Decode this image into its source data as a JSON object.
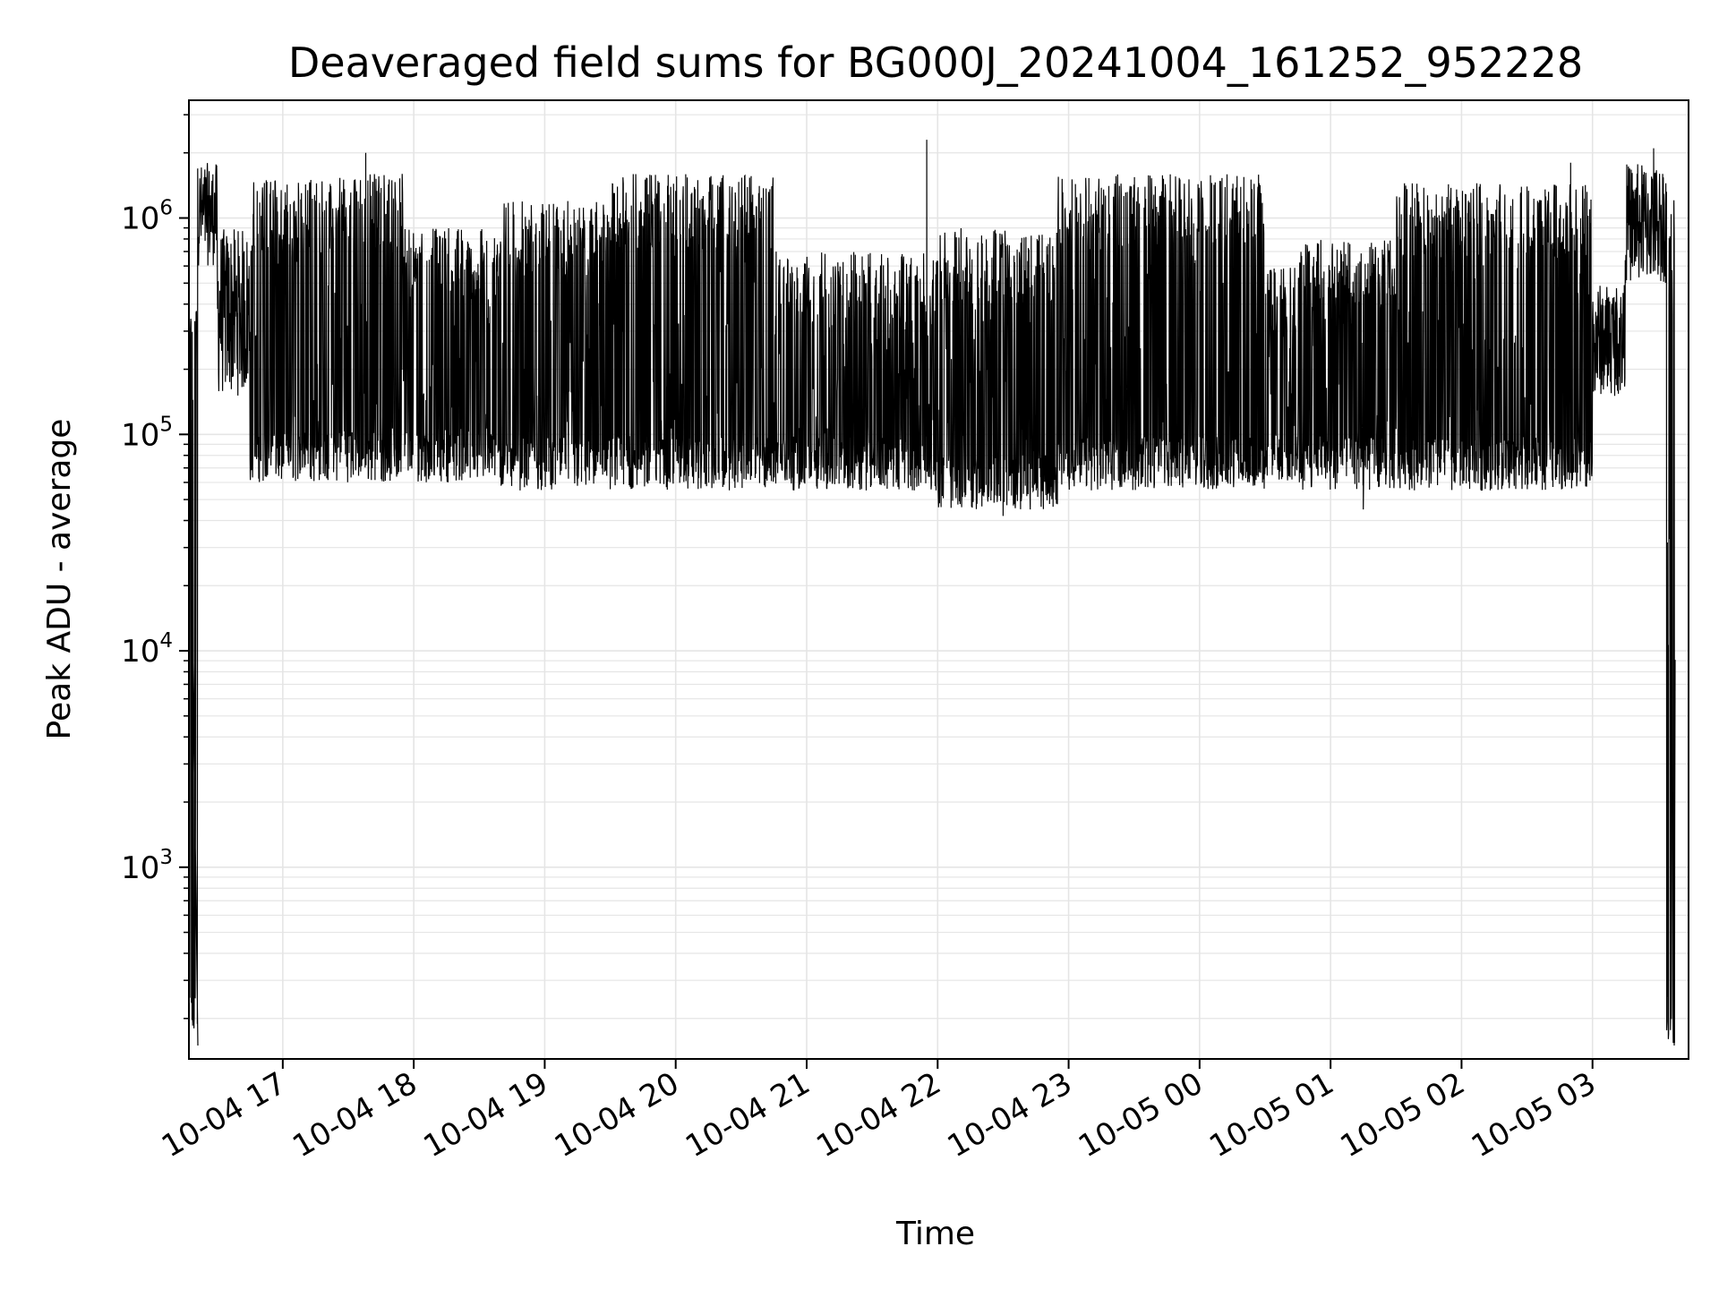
{
  "chart_data": {
    "type": "line",
    "title": "Deaveraged field sums for BG000J_20241004_161252_952228",
    "xlabel": "Time",
    "ylabel": "Peak ADU - average",
    "yscale": "log",
    "ylim": [
      130,
      3500000
    ],
    "xlim": [
      "2024-10-04 16:17",
      "2024-10-05 03:44"
    ],
    "grid": true,
    "line_color": "#000000",
    "grid_color": "#e5e5e5",
    "x_ticks": [
      {
        "value": "2024-10-04 17:00",
        "label": "10-04 17"
      },
      {
        "value": "2024-10-04 18:00",
        "label": "10-04 18"
      },
      {
        "value": "2024-10-04 19:00",
        "label": "10-04 19"
      },
      {
        "value": "2024-10-04 20:00",
        "label": "10-04 20"
      },
      {
        "value": "2024-10-04 21:00",
        "label": "10-04 21"
      },
      {
        "value": "2024-10-04 22:00",
        "label": "10-04 22"
      },
      {
        "value": "2024-10-04 23:00",
        "label": "10-04 23"
      },
      {
        "value": "2024-10-05 00:00",
        "label": "10-05 00"
      },
      {
        "value": "2024-10-05 01:00",
        "label": "10-05 01"
      },
      {
        "value": "2024-10-05 02:00",
        "label": "10-05 02"
      },
      {
        "value": "2024-10-05 03:00",
        "label": "10-05 03"
      }
    ],
    "y_ticks": [
      {
        "value": 1000,
        "base": "10",
        "exp": "3"
      },
      {
        "value": 10000,
        "base": "10",
        "exp": "4"
      },
      {
        "value": 100000,
        "base": "10",
        "exp": "5"
      },
      {
        "value": 1000000,
        "base": "10",
        "exp": "6"
      }
    ],
    "series": [
      {
        "segments": [
          {
            "start": "2024-10-04 16:17",
            "end": "2024-10-04 16:21",
            "lo": 150,
            "hi": 400000
          },
          {
            "start": "2024-10-04 16:21",
            "end": "2024-10-04 16:30",
            "lo": 600000,
            "hi": 1800000
          },
          {
            "start": "2024-10-04 16:30",
            "end": "2024-10-04 16:45",
            "lo": 150000,
            "hi": 900000
          },
          {
            "start": "2024-10-04 16:45",
            "end": "2024-10-04 17:25",
            "lo": 60000,
            "hi": 1500000
          },
          {
            "start": "2024-10-04 17:25",
            "end": "2024-10-04 17:55",
            "lo": 60000,
            "hi": 1600000
          },
          {
            "start": "2024-10-04 17:55",
            "end": "2024-10-04 18:40",
            "lo": 60000,
            "hi": 900000
          },
          {
            "start": "2024-10-04 18:40",
            "end": "2024-10-04 19:30",
            "lo": 55000,
            "hi": 1200000
          },
          {
            "start": "2024-10-04 19:30",
            "end": "2024-10-04 20:45",
            "lo": 55000,
            "hi": 1600000
          },
          {
            "start": "2024-10-04 20:45",
            "end": "2024-10-04 22:00",
            "lo": 55000,
            "hi": 700000
          },
          {
            "start": "2024-10-04 22:00",
            "end": "2024-10-04 22:55",
            "lo": 45000,
            "hi": 900000
          },
          {
            "start": "2024-10-04 22:55",
            "end": "2024-10-05 00:30",
            "lo": 55000,
            "hi": 1600000
          },
          {
            "start": "2024-10-05 00:30",
            "end": "2024-10-05 00:45",
            "lo": 60000,
            "hi": 600000
          },
          {
            "start": "2024-10-05 00:45",
            "end": "2024-10-05 01:30",
            "lo": 55000,
            "hi": 800000
          },
          {
            "start": "2024-10-05 01:30",
            "end": "2024-10-05 03:00",
            "lo": 55000,
            "hi": 1450000
          },
          {
            "start": "2024-10-05 03:00",
            "end": "2024-10-05 03:15",
            "lo": 150000,
            "hi": 500000
          },
          {
            "start": "2024-10-05 03:15",
            "end": "2024-10-05 03:34",
            "lo": 500000,
            "hi": 1800000
          },
          {
            "start": "2024-10-05 03:34",
            "end": "2024-10-05 03:38",
            "lo": 150,
            "hi": 1500000
          }
        ],
        "spikes": [
          {
            "x": "2024-10-04 21:55",
            "y": 2300000
          },
          {
            "x": "2024-10-04 17:38",
            "y": 2000000
          },
          {
            "x": "2024-10-05 03:28",
            "y": 2100000
          },
          {
            "x": "2024-10-04 22:30",
            "y": 42000
          },
          {
            "x": "2024-10-05 01:15",
            "y": 45000
          },
          {
            "x": "2024-10-05 02:50",
            "y": 1800000
          }
        ]
      }
    ]
  }
}
